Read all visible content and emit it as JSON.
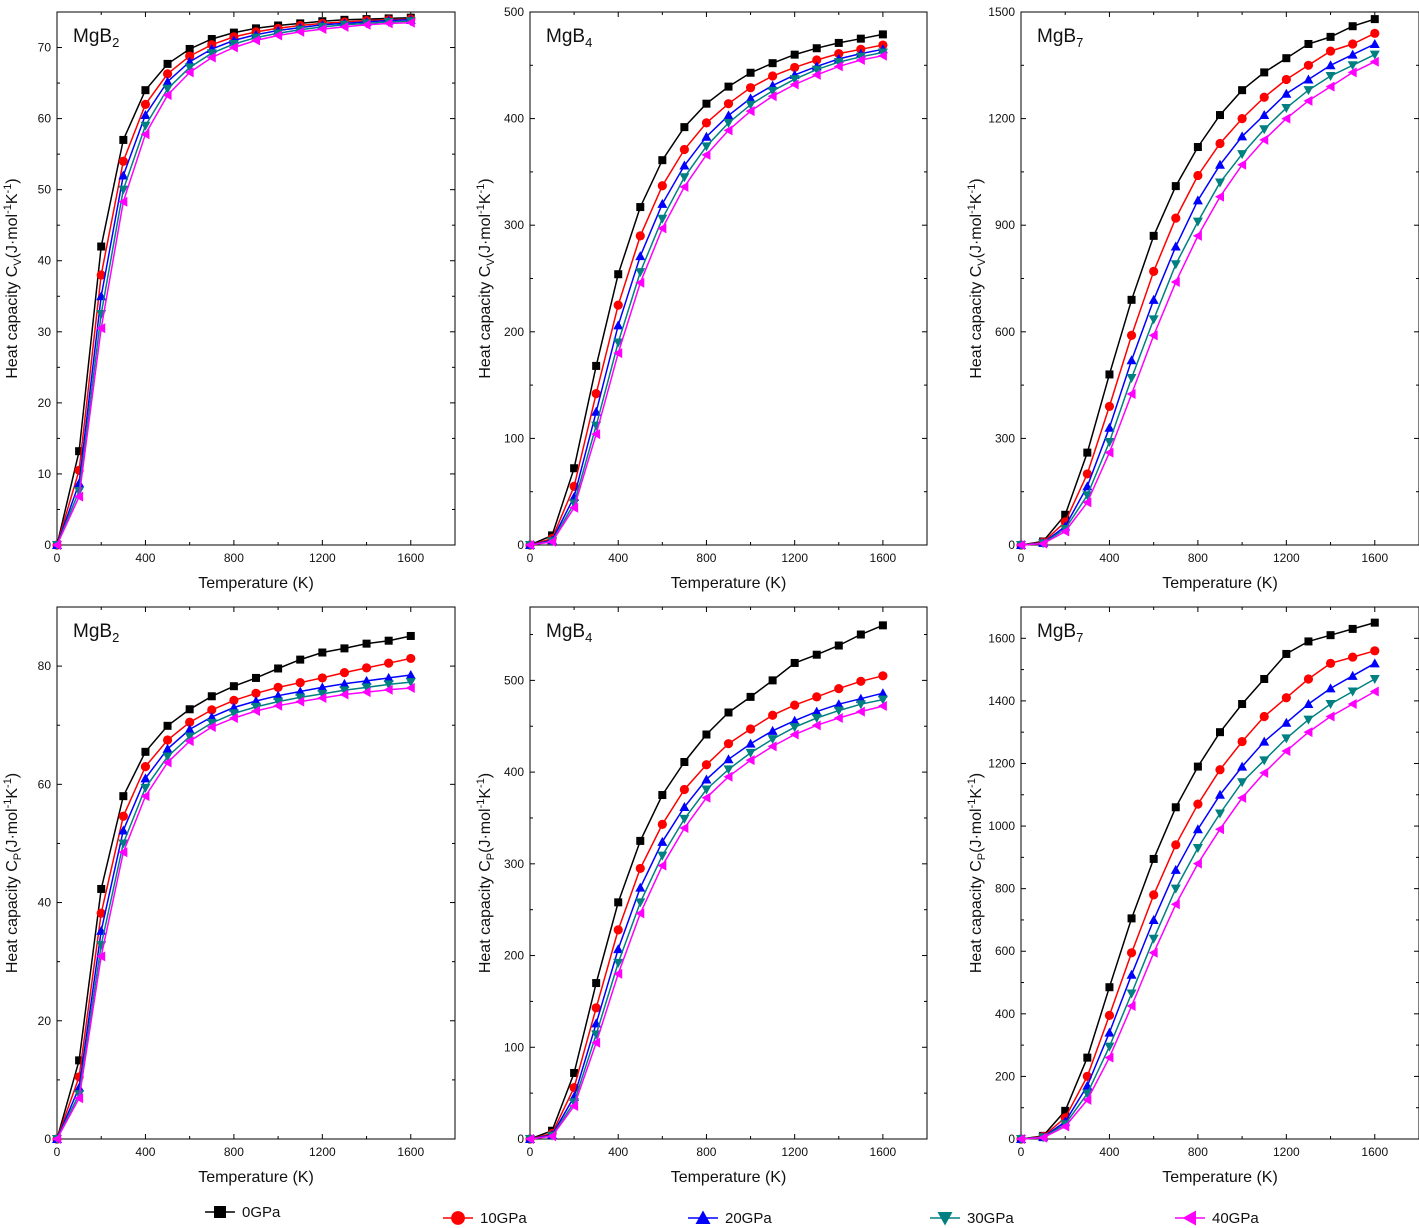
{
  "figure": {
    "legend": [
      {
        "name": "0GPa",
        "color": "#000000",
        "marker": "square"
      },
      {
        "name": "10GPa",
        "color": "#ff0000",
        "marker": "circle"
      },
      {
        "name": "20GPa",
        "color": "#0000ff",
        "marker": "triangle-up"
      },
      {
        "name": "30GPa",
        "color": "#008080",
        "marker": "triangle-down"
      },
      {
        "name": "40GPa",
        "color": "#ff00ff",
        "marker": "triangle-left"
      }
    ]
  },
  "chart_data": [
    {
      "type": "line",
      "panel_label": {
        "base": "MgB",
        "sub": "2"
      },
      "xlabel": "Temperature (K)",
      "ylabel": {
        "pre": "Heat capacity C",
        "sub": "V",
        "post": "(J·mol",
        "sup1": "-1",
        "mid": "K",
        "sup2": "-1",
        "end": ")"
      },
      "xlim": [
        0,
        1800
      ],
      "ylim": [
        0,
        75
      ],
      "xticks": [
        0,
        400,
        800,
        1200,
        1600
      ],
      "yticks": [
        0,
        10,
        20,
        30,
        40,
        50,
        60,
        70
      ],
      "x": [
        0,
        100,
        200,
        300,
        400,
        500,
        600,
        700,
        800,
        900,
        1000,
        1100,
        1200,
        1300,
        1400,
        1500,
        1600
      ],
      "series": [
        {
          "name": "0GPa",
          "values": [
            0,
            13.2,
            42.0,
            57.0,
            64.0,
            67.7,
            69.8,
            71.2,
            72.1,
            72.7,
            73.1,
            73.4,
            73.7,
            73.9,
            74.0,
            74.1,
            74.2
          ]
        },
        {
          "name": "10GPa",
          "values": [
            0,
            10.5,
            38.0,
            54.0,
            62.0,
            66.3,
            68.8,
            70.4,
            71.5,
            72.2,
            72.7,
            73.1,
            73.4,
            73.6,
            73.8,
            73.9,
            74.0
          ]
        },
        {
          "name": "20GPa",
          "values": [
            0,
            8.7,
            35.0,
            52.0,
            60.5,
            65.2,
            68.0,
            69.8,
            71.0,
            71.8,
            72.4,
            72.8,
            73.2,
            73.4,
            73.6,
            73.8,
            73.9
          ]
        },
        {
          "name": "30GPa",
          "values": [
            0,
            7.6,
            32.5,
            50.0,
            59.0,
            64.2,
            67.2,
            69.2,
            70.5,
            71.4,
            72.0,
            72.5,
            72.9,
            73.2,
            73.4,
            73.6,
            73.7
          ]
        },
        {
          "name": "40GPa",
          "values": [
            0,
            6.8,
            30.5,
            48.3,
            57.8,
            63.3,
            66.5,
            68.6,
            70.0,
            71.0,
            71.7,
            72.2,
            72.6,
            72.9,
            73.2,
            73.4,
            73.5
          ]
        }
      ]
    },
    {
      "type": "line",
      "panel_label": {
        "base": "MgB",
        "sub": "4"
      },
      "xlabel": "Temperature (K)",
      "ylabel": {
        "pre": "Heat capacity C",
        "sub": "V",
        "post": "(J·mol",
        "sup1": "-1",
        "mid": "K",
        "sup2": "-1",
        "end": ")"
      },
      "xlim": [
        0,
        1800
      ],
      "ylim": [
        0,
        500
      ],
      "xticks": [
        0,
        400,
        800,
        1200,
        1600
      ],
      "yticks": [
        0,
        100,
        200,
        300,
        400,
        500
      ],
      "x": [
        0,
        100,
        200,
        300,
        400,
        500,
        600,
        700,
        800,
        900,
        1000,
        1100,
        1200,
        1300,
        1400,
        1500,
        1600
      ],
      "series": [
        {
          "name": "0GPa",
          "values": [
            0,
            9,
            72,
            168,
            254,
            317,
            361,
            392,
            414,
            430,
            443,
            452,
            460,
            466,
            471,
            475,
            479
          ]
        },
        {
          "name": "10GPa",
          "values": [
            0,
            6,
            55,
            142,
            225,
            290,
            337,
            371,
            396,
            414,
            429,
            440,
            448,
            455,
            461,
            465,
            469
          ]
        },
        {
          "name": "20GPa",
          "values": [
            0,
            4.5,
            45,
            125,
            206,
            271,
            320,
            356,
            383,
            403,
            419,
            431,
            441,
            449,
            456,
            461,
            465
          ]
        },
        {
          "name": "30GPa",
          "values": [
            0,
            3.5,
            39,
            112,
            190,
            256,
            306,
            345,
            374,
            396,
            413,
            426,
            437,
            446,
            453,
            458,
            462
          ]
        },
        {
          "name": "40GPa",
          "values": [
            0,
            3,
            35,
            104,
            180,
            246,
            297,
            336,
            366,
            389,
            407,
            421,
            432,
            441,
            449,
            455,
            459
          ]
        }
      ]
    },
    {
      "type": "line",
      "panel_label": {
        "base": "MgB",
        "sub": "7"
      },
      "xlabel": "Temperature (K)",
      "ylabel": {
        "pre": "Heat capacity C",
        "sub": "V",
        "post": "(J·mol",
        "sup1": "-1",
        "mid": "K",
        "sup2": "-1",
        "end": ")"
      },
      "xlim": [
        0,
        1800
      ],
      "ylim": [
        0,
        1500
      ],
      "xticks": [
        0,
        400,
        800,
        1200,
        1600
      ],
      "yticks": [
        0,
        300,
        600,
        900,
        1200,
        1500
      ],
      "x": [
        0,
        100,
        200,
        300,
        400,
        500,
        600,
        700,
        800,
        900,
        1000,
        1100,
        1200,
        1300,
        1400,
        1500,
        1600
      ],
      "series": [
        {
          "name": "0GPa",
          "values": [
            0,
            10,
            85,
            260,
            480,
            690,
            870,
            1010,
            1120,
            1210,
            1280,
            1330,
            1370,
            1410,
            1430,
            1460,
            1480
          ]
        },
        {
          "name": "10GPa",
          "values": [
            0,
            8,
            65,
            200,
            390,
            590,
            770,
            920,
            1040,
            1130,
            1200,
            1260,
            1310,
            1350,
            1390,
            1410,
            1440
          ]
        },
        {
          "name": "20GPa",
          "values": [
            0,
            6,
            52,
            165,
            330,
            520,
            690,
            840,
            970,
            1070,
            1150,
            1210,
            1270,
            1310,
            1350,
            1380,
            1410
          ]
        },
        {
          "name": "30GPa",
          "values": [
            0,
            5,
            45,
            140,
            290,
            470,
            635,
            790,
            910,
            1020,
            1100,
            1170,
            1230,
            1280,
            1320,
            1350,
            1380
          ]
        },
        {
          "name": "40GPa",
          "values": [
            0,
            4,
            38,
            120,
            260,
            425,
            590,
            740,
            870,
            980,
            1070,
            1140,
            1200,
            1250,
            1290,
            1330,
            1360
          ]
        }
      ]
    },
    {
      "type": "line",
      "panel_label": {
        "base": "MgB",
        "sub": "2"
      },
      "xlabel": "Temperature (K)",
      "ylabel": {
        "pre": "Heat capacity C",
        "sub": "P",
        "post": "(J·mol",
        "sup1": "-1",
        "mid": "K",
        "sup2": "-1",
        "end": ")"
      },
      "xlim": [
        0,
        1800
      ],
      "ylim": [
        0,
        90
      ],
      "xticks": [
        0,
        400,
        800,
        1200,
        1600
      ],
      "yticks": [
        0,
        20,
        40,
        60,
        80
      ],
      "x": [
        0,
        100,
        200,
        300,
        400,
        500,
        600,
        700,
        800,
        900,
        1000,
        1100,
        1200,
        1300,
        1400,
        1500,
        1600
      ],
      "series": [
        {
          "name": "0GPa",
          "values": [
            0,
            13.3,
            42.3,
            58.0,
            65.5,
            69.9,
            72.7,
            74.9,
            76.6,
            78.0,
            79.6,
            81.1,
            82.3,
            83.0,
            83.8,
            84.3,
            85.1
          ]
        },
        {
          "name": "10GPa",
          "values": [
            0,
            10.5,
            38.2,
            54.6,
            63.0,
            67.5,
            70.5,
            72.6,
            74.2,
            75.4,
            76.4,
            77.2,
            78.0,
            78.9,
            79.7,
            80.5,
            81.3
          ]
        },
        {
          "name": "20GPa",
          "values": [
            0,
            8.7,
            35.2,
            52.2,
            61.0,
            66.0,
            69.3,
            71.4,
            73.0,
            74.1,
            75.0,
            75.7,
            76.4,
            77.0,
            77.5,
            78.0,
            78.5
          ]
        },
        {
          "name": "30GPa",
          "values": [
            0,
            7.6,
            32.8,
            50.0,
            59.4,
            64.7,
            68.1,
            70.4,
            72.0,
            73.1,
            74.0,
            74.7,
            75.3,
            75.9,
            76.4,
            76.9,
            77.3
          ]
        },
        {
          "name": "40GPa",
          "values": [
            0,
            6.9,
            30.9,
            48.5,
            58.0,
            63.7,
            67.3,
            69.7,
            71.2,
            72.4,
            73.3,
            74.0,
            74.6,
            75.2,
            75.6,
            76.0,
            76.3
          ]
        }
      ]
    },
    {
      "type": "line",
      "panel_label": {
        "base": "MgB",
        "sub": "4"
      },
      "xlabel": "Temperature (K)",
      "ylabel": {
        "pre": "Heat capacity C",
        "sub": "P",
        "post": "(J·mol",
        "sup1": "-1",
        "mid": "K",
        "sup2": "-1",
        "end": ")"
      },
      "xlim": [
        0,
        1800
      ],
      "ylim": [
        0,
        580
      ],
      "xticks": [
        0,
        400,
        800,
        1200,
        1600
      ],
      "yticks": [
        0,
        100,
        200,
        300,
        400,
        500
      ],
      "x": [
        0,
        100,
        200,
        300,
        400,
        500,
        600,
        700,
        800,
        900,
        1000,
        1100,
        1200,
        1300,
        1400,
        1500,
        1600
      ],
      "series": [
        {
          "name": "0GPa",
          "values": [
            0,
            9,
            72,
            170,
            258,
            325,
            375,
            411,
            441,
            465,
            482,
            500,
            519,
            528,
            538,
            550,
            560
          ]
        },
        {
          "name": "10GPa",
          "values": [
            0,
            6,
            56,
            143,
            228,
            295,
            343,
            381,
            408,
            431,
            447,
            462,
            473,
            482,
            491,
            499,
            505
          ]
        },
        {
          "name": "20GPa",
          "values": [
            0,
            4.5,
            46,
            126,
            207,
            274,
            324,
            362,
            392,
            414,
            431,
            445,
            456,
            466,
            474,
            480,
            486
          ]
        },
        {
          "name": "30GPa",
          "values": [
            0,
            3.5,
            40,
            114,
            192,
            258,
            309,
            349,
            381,
            403,
            421,
            436,
            449,
            459,
            467,
            474,
            479
          ]
        },
        {
          "name": "40GPa",
          "values": [
            0,
            3,
            36,
            105,
            180,
            246,
            298,
            339,
            372,
            395,
            413,
            428,
            441,
            451,
            459,
            466,
            472
          ]
        }
      ]
    },
    {
      "type": "line",
      "panel_label": {
        "base": "MgB",
        "sub": "7"
      },
      "xlabel": "Temperature (K)",
      "ylabel": {
        "pre": "Heat capacity C",
        "sub": "P",
        "post": "(J·mol",
        "sup1": "-1",
        "mid": "K",
        "sup2": "-1",
        "end": ")"
      },
      "xlim": [
        0,
        1800
      ],
      "ylim": [
        0,
        1700
      ],
      "xticks": [
        0,
        400,
        800,
        1200,
        1600
      ],
      "yticks": [
        0,
        200,
        400,
        600,
        800,
        1000,
        1200,
        1400,
        1600
      ],
      "x": [
        0,
        100,
        200,
        300,
        400,
        500,
        600,
        700,
        800,
        900,
        1000,
        1100,
        1200,
        1300,
        1400,
        1500,
        1600
      ],
      "series": [
        {
          "name": "0GPa",
          "values": [
            0,
            10,
            90,
            260,
            485,
            705,
            895,
            1060,
            1190,
            1300,
            1390,
            1470,
            1550,
            1590,
            1610,
            1630,
            1650
          ]
        },
        {
          "name": "10GPa",
          "values": [
            0,
            8,
            68,
            200,
            395,
            595,
            780,
            940,
            1070,
            1180,
            1270,
            1350,
            1410,
            1470,
            1520,
            1540,
            1560
          ]
        },
        {
          "name": "20GPa",
          "values": [
            0,
            6,
            55,
            170,
            340,
            525,
            700,
            860,
            990,
            1100,
            1190,
            1270,
            1330,
            1390,
            1440,
            1480,
            1520
          ]
        },
        {
          "name": "30GPa",
          "values": [
            0,
            5,
            47,
            145,
            295,
            465,
            640,
            800,
            930,
            1040,
            1140,
            1210,
            1280,
            1340,
            1390,
            1430,
            1470
          ]
        },
        {
          "name": "40GPa",
          "values": [
            0,
            4,
            40,
            125,
            260,
            425,
            595,
            750,
            880,
            990,
            1090,
            1170,
            1240,
            1300,
            1350,
            1390,
            1430
          ]
        }
      ]
    }
  ]
}
